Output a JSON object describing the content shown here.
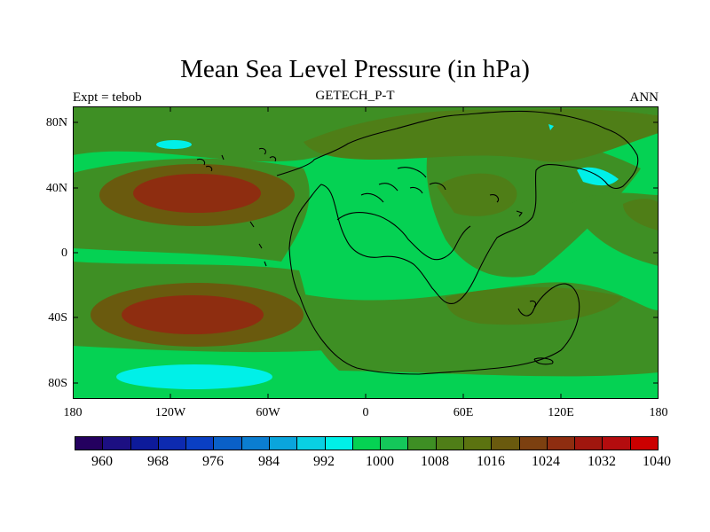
{
  "title": "Mean Sea Level Pressure (in hPa)",
  "left_label": "Expt = tebob",
  "center_label": "GETECH_P-T",
  "right_label": "ANN",
  "y_ticks": [
    "80N",
    "40N",
    "0",
    "40S",
    "80S"
  ],
  "x_ticks": [
    "180",
    "120W",
    "60W",
    "0",
    "60E",
    "120E",
    "180"
  ],
  "colorbar": {
    "colors": [
      "#24005f",
      "#1c0f82",
      "#0d1a9a",
      "#0d2ab0",
      "#0a3fc3",
      "#0a60c8",
      "#0b7ed1",
      "#0aa5dc",
      "#09d0e3",
      "#00f0e8",
      "#05d253",
      "#14c85a",
      "#3e8f24",
      "#4f7e17",
      "#5b7310",
      "#6a5a0e",
      "#7c4010",
      "#8e2d10",
      "#a0160e",
      "#b40c0e",
      "#cc0000"
    ],
    "labels": [
      "960",
      "968",
      "976",
      "984",
      "992",
      "1000",
      "1008",
      "1016",
      "1024",
      "1032",
      "1040"
    ]
  },
  "field_colors": {
    "p1000": "#00f0e8",
    "p1008": "#05d253",
    "p1016": "#3e8f24",
    "p1020": "#4f7e17",
    "p1024": "#6a5a0e",
    "p1032": "#8e2d10"
  }
}
